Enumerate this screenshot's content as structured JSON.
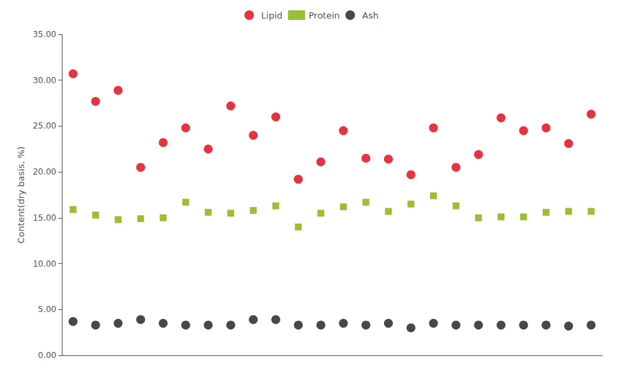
{
  "chart_data": {
    "type": "scatter",
    "categories": [
      null,
      null,
      null,
      null,
      null,
      null,
      null,
      null,
      null,
      null,
      null,
      null,
      null,
      null,
      null,
      null,
      null,
      null,
      null,
      null,
      null,
      null,
      null,
      null
    ],
    "series": [
      {
        "name": "Lipid",
        "color": "#e00010",
        "marker": "circle",
        "values": [
          30.7,
          27.7,
          28.9,
          20.5,
          23.2,
          24.8,
          22.5,
          27.2,
          24.0,
          26.0,
          19.2,
          21.1,
          24.5,
          21.5,
          21.4,
          19.7,
          24.8,
          20.5,
          21.9,
          25.9,
          24.5,
          24.8,
          23.1,
          26.3
        ]
      },
      {
        "name": "Protein",
        "color": "#80b000",
        "marker": "square",
        "values": [
          15.9,
          15.3,
          14.8,
          14.9,
          15.0,
          16.7,
          15.6,
          15.5,
          15.8,
          16.3,
          14.0,
          15.5,
          16.2,
          16.7,
          15.7,
          16.5,
          17.4,
          16.3,
          15.0,
          15.1,
          15.1,
          15.6,
          15.7,
          15.7
        ]
      },
      {
        "name": "Ash",
        "color": "#1a1a1a",
        "marker": "circle",
        "values": [
          3.7,
          3.3,
          3.5,
          3.9,
          3.5,
          3.3,
          3.3,
          3.3,
          3.9,
          3.9,
          3.3,
          3.3,
          3.5,
          3.3,
          3.5,
          3.0,
          3.5,
          3.3,
          3.3,
          3.3,
          3.3,
          3.3,
          3.2,
          3.3
        ]
      }
    ],
    "ylabel": "Content(dry basis, %)",
    "ylim": [
      0.0,
      35.0
    ],
    "yticks": [
      {
        "value": 0,
        "label": "0.00"
      },
      {
        "value": 5,
        "label": "5.00"
      },
      {
        "value": 10,
        "label": "10.00"
      },
      {
        "value": 15,
        "label": "15.00"
      },
      {
        "value": 20,
        "label": "20.00"
      },
      {
        "value": 25,
        "label": "25.00"
      },
      {
        "value": 30,
        "label": "30.00"
      },
      {
        "value": 35,
        "label": "35.00"
      }
    ],
    "grid": false,
    "legend": "top",
    "tick_labels": "y"
  }
}
